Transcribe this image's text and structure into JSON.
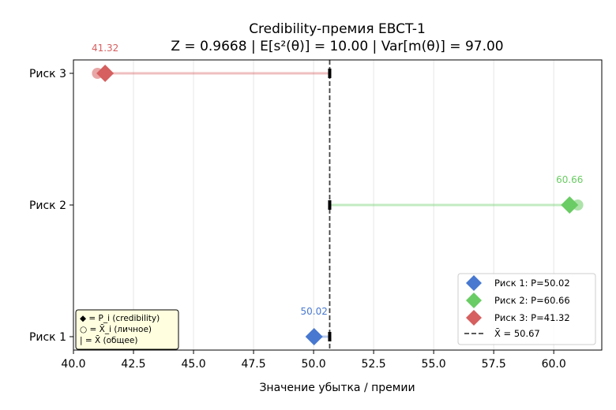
{
  "chart_data": {
    "type": "scatter",
    "title": "Credibility-премия EBCT-1",
    "subtitle": "Z = 0.9668  |  E[s²(θ)] = 10.00  |  Var[m(θ)] = 97.00",
    "xlabel": "Значение убытка / премии",
    "ylabel": "",
    "xlim": [
      40.0,
      62.0
    ],
    "x_ticks": [
      "40.0",
      "42.5",
      "45.0",
      "47.5",
      "50.0",
      "52.5",
      "55.0",
      "57.5",
      "60.0"
    ],
    "x_tick_values": [
      40.0,
      42.5,
      45.0,
      47.5,
      50.0,
      52.5,
      55.0,
      57.5,
      60.0
    ],
    "categories": [
      "Риск 1",
      "Риск 2",
      "Риск 3"
    ],
    "grid": "x",
    "overall_mean": 50.67,
    "series": [
      {
        "name": "Риск 1: P=50.02",
        "category": "Риск 1",
        "premium": 50.02,
        "premium_label": "50.02",
        "individual_mean": 50.0,
        "color": "#4878d0"
      },
      {
        "name": "Риск 2: P=60.66",
        "category": "Риск 2",
        "premium": 60.66,
        "premium_label": "60.66",
        "individual_mean": 61.0,
        "color": "#6acc64"
      },
      {
        "name": "Риск 3: P=41.32",
        "category": "Риск 3",
        "premium": 41.32,
        "premium_label": "41.32",
        "individual_mean": 41.0,
        "color": "#d65f5f"
      }
    ],
    "legend": {
      "placement": "lower-right",
      "mean_label": "X̄ = 50.67"
    },
    "annotation": {
      "placement": "lower-left",
      "lines": [
        "◆ = P_i (credibility)",
        "○ = X̄_i (личное)",
        "| = X̄ (общее)"
      ]
    }
  }
}
